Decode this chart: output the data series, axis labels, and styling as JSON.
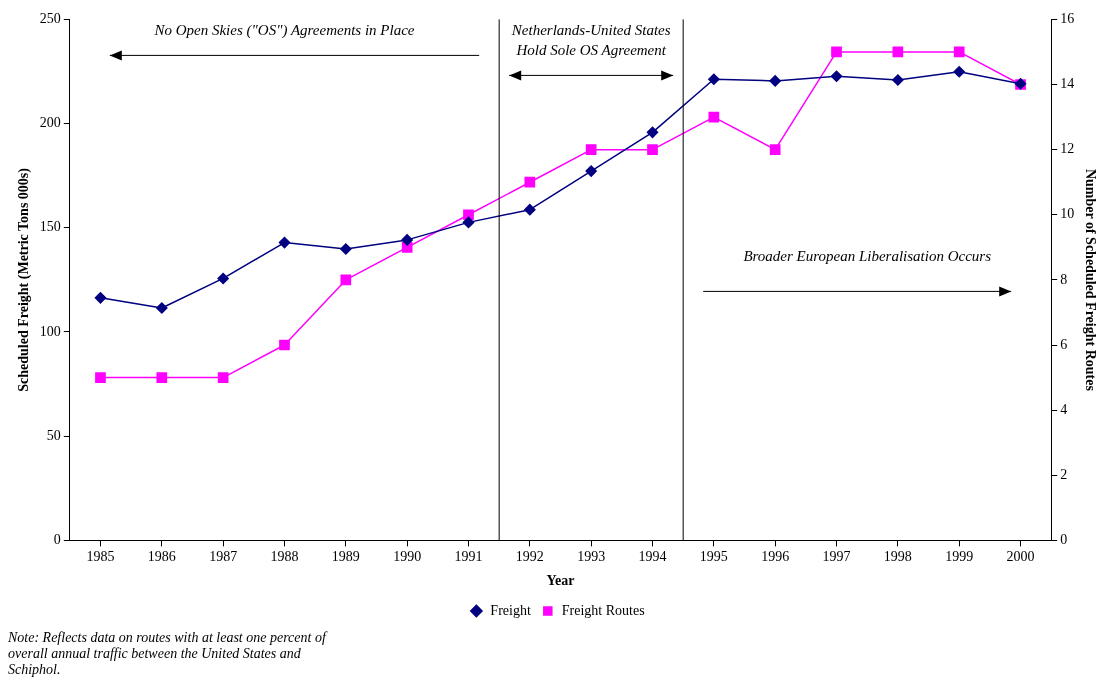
{
  "chart_data": {
    "type": "line",
    "xlabel": "Year",
    "ylabel": "Scheduled Freight (Metric Tons 000s)",
    "y2label": "Number of Scheduled Freight Routes",
    "x": [
      1985,
      1986,
      1987,
      1988,
      1989,
      1990,
      1991,
      1992,
      1993,
      1994,
      1995,
      1996,
      1997,
      1998,
      1999,
      2000
    ],
    "series": [
      {
        "name": "Freight",
        "color": "#000080",
        "marker": "diamond",
        "values": [
          116.4,
          111.5,
          125.7,
          142.9,
          139.8,
          144.2,
          152.6,
          158.7,
          177.2,
          195.8,
          221.3,
          220.5,
          222.7,
          220.9,
          224.9,
          219.1
        ]
      },
      {
        "name": "Freight Routes",
        "color": "#ff00ff",
        "marker": "square",
        "axis": "y2",
        "values": [
          5,
          5,
          5,
          6,
          8,
          9,
          10,
          11,
          12,
          12,
          13,
          12,
          15,
          15,
          15,
          14
        ]
      }
    ],
    "xlim": [
      1984.5,
      2000.5
    ],
    "xticks": [
      1985,
      1986,
      1987,
      1988,
      1989,
      1990,
      1991,
      1992,
      1993,
      1994,
      1995,
      1996,
      1997,
      1998,
      1999,
      2000
    ],
    "ylim": [
      0,
      250
    ],
    "yticks": [
      0,
      50,
      100,
      150,
      200,
      250
    ],
    "y2lim": [
      0,
      16
    ],
    "y2ticks": [
      0,
      2,
      4,
      6,
      8,
      10,
      12,
      14,
      16
    ],
    "ref_lines": [
      {
        "axis": "x",
        "value": 1991.5,
        "color": "#000000"
      },
      {
        "axis": "x",
        "value": 1994.5,
        "color": "#000000"
      }
    ],
    "annotations": [
      "No Open Skies (\"OS\") Agreements in Place",
      "Netherlands-United States\nHold Sole OS Agreement",
      "Broader European Liberalisation Occurs",
      "Note:  Reflects data on routes with at least one percent of overall annual traffic between the United States and Schiphol."
    ],
    "grid": false,
    "legend": "bottom",
    "line_style": "solid"
  }
}
